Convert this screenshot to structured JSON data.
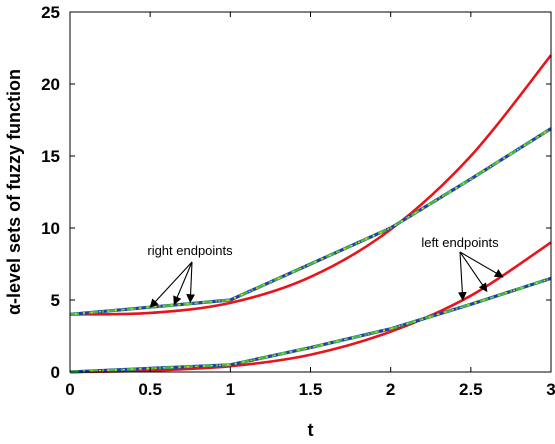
{
  "chart_data": {
    "type": "line",
    "title": "",
    "xlabel": "t",
    "ylabel": "α-level sets of fuzzy function",
    "xlim": [
      0,
      3
    ],
    "ylim": [
      0,
      25
    ],
    "grid": false,
    "legend": "none",
    "xticks": [
      0,
      0.5,
      1,
      1.5,
      2,
      2.5,
      3
    ],
    "xtick_labels": [
      "0",
      "0.5",
      "1",
      "1.5",
      "2",
      "2.5",
      "3"
    ],
    "yticks": [
      0,
      5,
      10,
      15,
      20,
      25
    ],
    "ytick_labels": [
      "0",
      "5",
      "10",
      "15",
      "20",
      "25"
    ],
    "colors": {
      "red": "#e8141c",
      "blue": "#1f3fb0",
      "green": "#3bbf3b",
      "yellow": "#e6d21e"
    },
    "series": [
      {
        "color": "red",
        "x": [
          0,
          0.5,
          1.0,
          1.5,
          2.0,
          2.5,
          3.0
        ],
        "y": [
          4.0,
          4.1,
          4.8,
          6.6,
          9.9,
          15.0,
          22.0
        ]
      },
      {
        "color": "red",
        "x": [
          0,
          0.5,
          1.0,
          1.5,
          2.0,
          2.5,
          3.0
        ],
        "y": [
          0.0,
          0.1,
          0.4,
          1.2,
          2.8,
          5.3,
          9.0
        ]
      },
      {
        "color": "blue-green-yellow dash-dot",
        "x": [
          0,
          0.5,
          1.0,
          1.5,
          2.0,
          2.5,
          3.0
        ],
        "y": [
          4.0,
          4.5,
          5.0,
          7.5,
          10.0,
          13.4,
          16.9
        ]
      },
      {
        "color": "blue-green-yellow dash-dot",
        "x": [
          0,
          0.5,
          1.0,
          1.5,
          2.0,
          2.5,
          3.0
        ],
        "y": [
          0.0,
          0.25,
          0.5,
          1.7,
          3.0,
          4.7,
          6.5
        ]
      }
    ],
    "annotations": [
      {
        "text": "right endpoints",
        "points": [
          [
            0.5,
            4.5
          ],
          [
            0.65,
            4.7
          ],
          [
            0.75,
            4.85
          ]
        ]
      },
      {
        "text": "left endpoints",
        "points": [
          [
            2.45,
            5.0
          ],
          [
            2.6,
            5.6
          ],
          [
            2.7,
            6.6
          ]
        ]
      }
    ]
  }
}
